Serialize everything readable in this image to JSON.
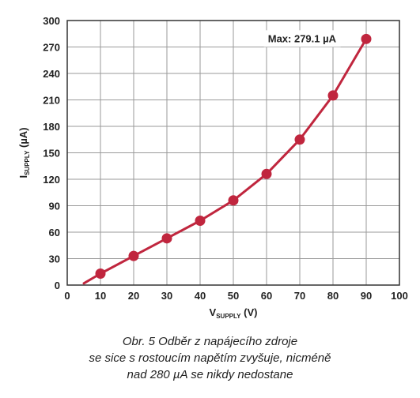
{
  "chart_data": {
    "type": "line",
    "x": [
      5,
      10,
      20,
      30,
      40,
      50,
      60,
      70,
      80,
      90
    ],
    "y": [
      2,
      13,
      33,
      53,
      73,
      96,
      126,
      165,
      215,
      279.1
    ],
    "markers_from_index": 1,
    "xlim": [
      0,
      100
    ],
    "ylim": [
      0,
      300
    ],
    "xticks": [
      "0",
      "10",
      "20",
      "30",
      "40",
      "50",
      "60",
      "70",
      "80",
      "90",
      "100"
    ],
    "yticks": [
      "0",
      "30",
      "60",
      "90",
      "120",
      "150",
      "180",
      "210",
      "240",
      "270",
      "300"
    ],
    "xlabel": {
      "main": "V",
      "sub": "SUPPLY",
      "unit": " (V)"
    },
    "ylabel": {
      "main": "I",
      "sub": "SUPPLY",
      "unit": " (µA)"
    },
    "annotation": "Max: 279.1 µA",
    "grid": true,
    "line_color": "#c0263e"
  },
  "caption": {
    "line1": "Obr. 5  Odběr z napájecího zdroje",
    "line2": "se sice s rostoucím napětím zvyšuje, nicméně",
    "line3": "nad 280 µA se nikdy nedostane"
  }
}
